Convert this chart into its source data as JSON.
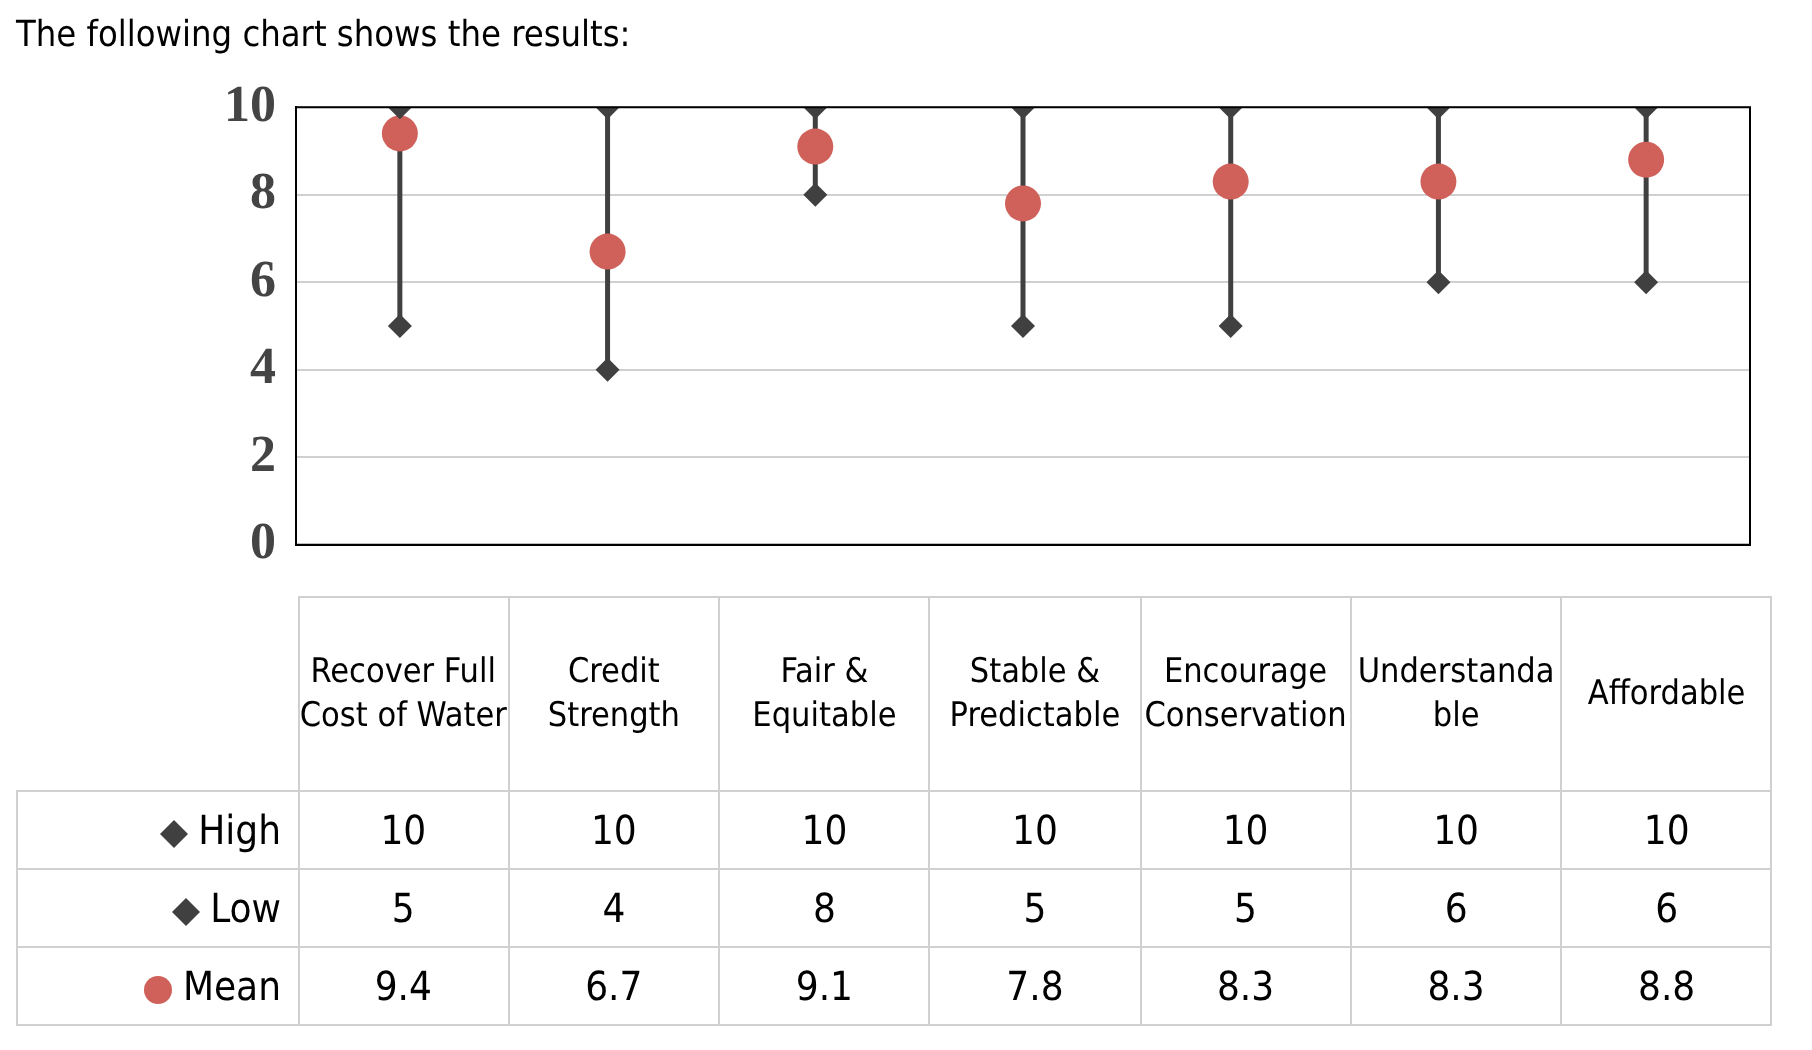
{
  "chart_data": {
    "type": "scatter",
    "title": "The following chart shows the results:",
    "categories": [
      "Recover Full Cost of Water",
      "Credit Strength",
      "Fair & Equitable",
      "Stable & Predictable",
      "Encourage Conservation",
      "Understandable",
      "Affordable"
    ],
    "series": [
      {
        "name": "High",
        "color": "#404040",
        "marker": "diamond",
        "values": [
          10,
          10,
          10,
          10,
          10,
          10,
          10
        ]
      },
      {
        "name": "Low",
        "color": "#404040",
        "marker": "diamond",
        "values": [
          5,
          4,
          8,
          5,
          5,
          6,
          6
        ]
      },
      {
        "name": "Mean",
        "color": "#d0605a",
        "marker": "circle",
        "values": [
          9.4,
          6.7,
          9.1,
          7.8,
          8.3,
          8.3,
          8.8
        ]
      }
    ],
    "ylim": [
      0,
      10
    ],
    "yticks": [
      0,
      2,
      4,
      6,
      8,
      10
    ],
    "grid": "y",
    "data_labels": true,
    "legend": "bottom"
  }
}
